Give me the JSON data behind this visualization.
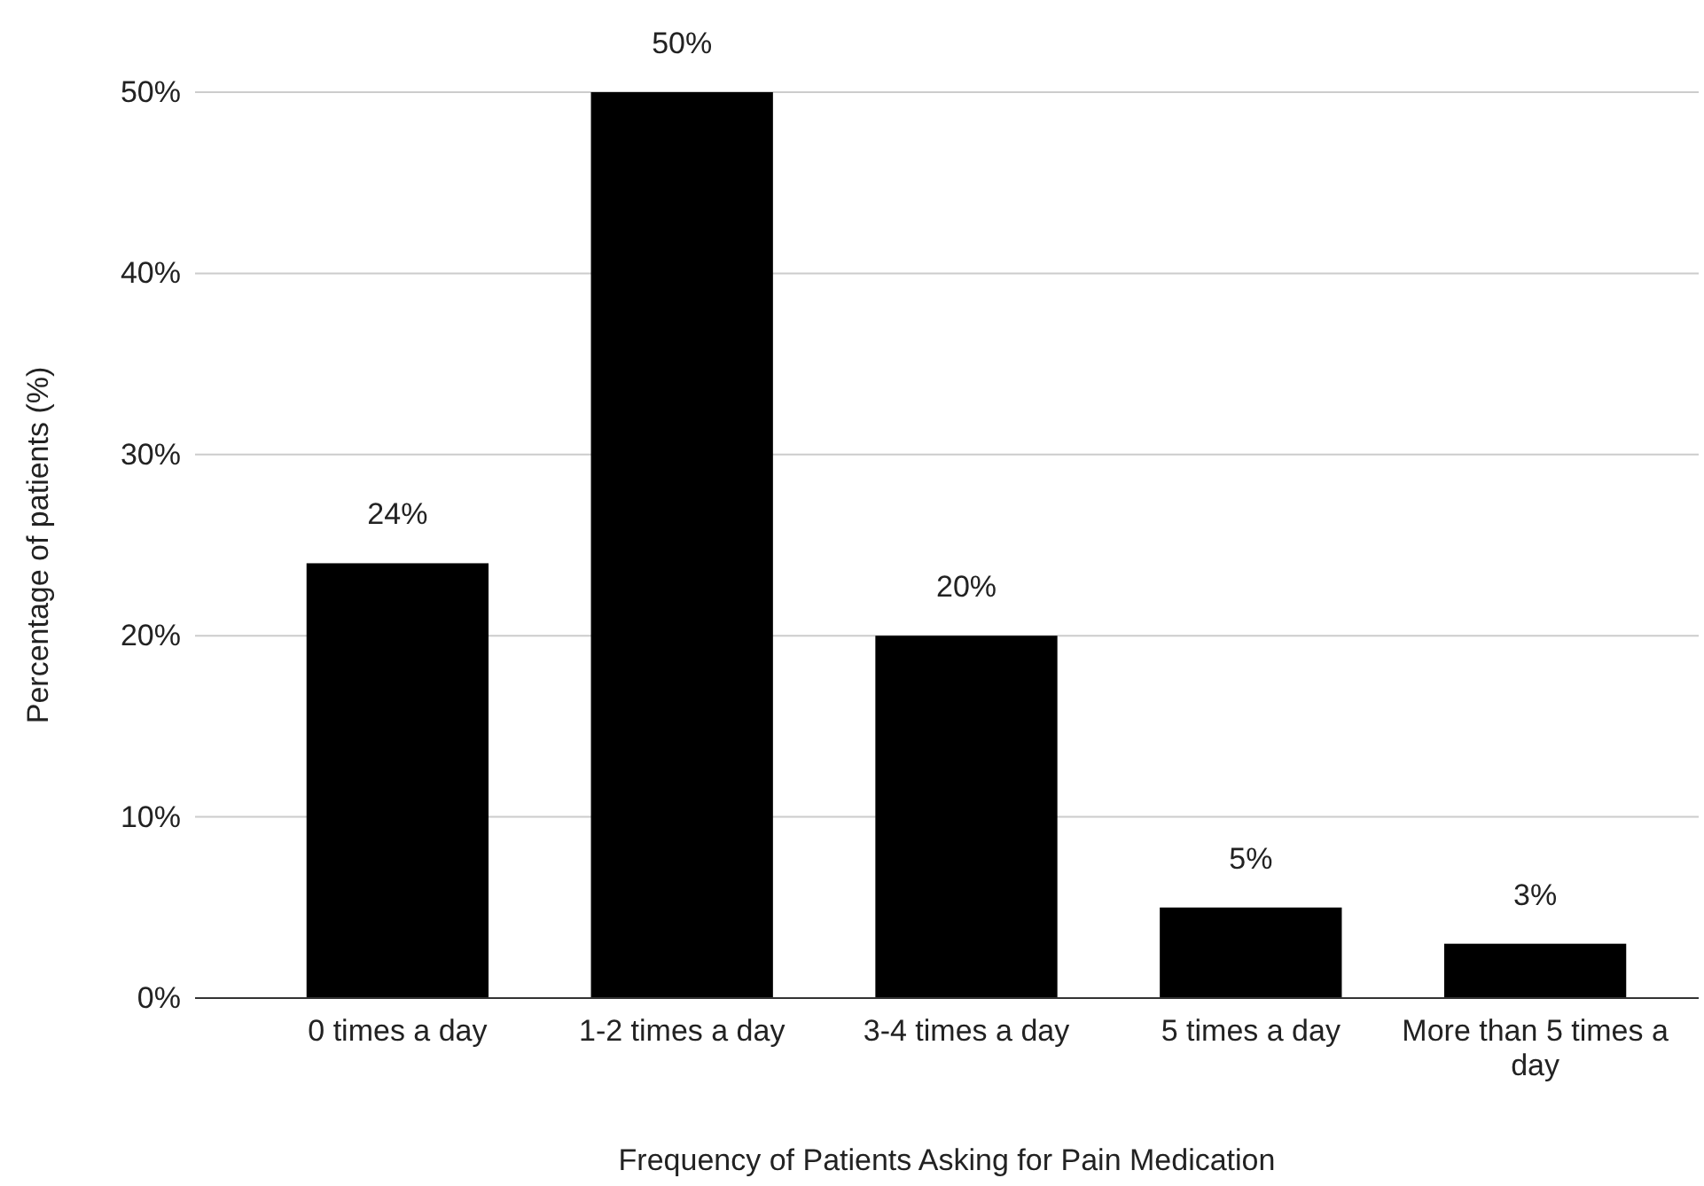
{
  "chart_data": {
    "type": "bar",
    "xlabel": "Frequency of Patients Asking for Pain Medication",
    "ylabel": "Percentage of patients (%)",
    "categories": [
      "0 times a day",
      "1-2 times a day",
      "3-4 times a day",
      "5 times a day",
      "More than 5 times a day"
    ],
    "values": [
      24,
      50,
      20,
      5,
      3
    ],
    "value_labels": [
      "24%",
      "50%",
      "20%",
      "5%",
      "3%"
    ],
    "color": "#000000",
    "ylim": [
      0,
      50
    ],
    "yticks": [
      {
        "value": 0,
        "label": "0%"
      },
      {
        "value": 10,
        "label": "10%"
      },
      {
        "value": 20,
        "label": "20%"
      },
      {
        "value": 30,
        "label": "30%"
      },
      {
        "value": 40,
        "label": "40%"
      },
      {
        "value": 50,
        "label": "50%"
      }
    ],
    "grid": "y"
  }
}
